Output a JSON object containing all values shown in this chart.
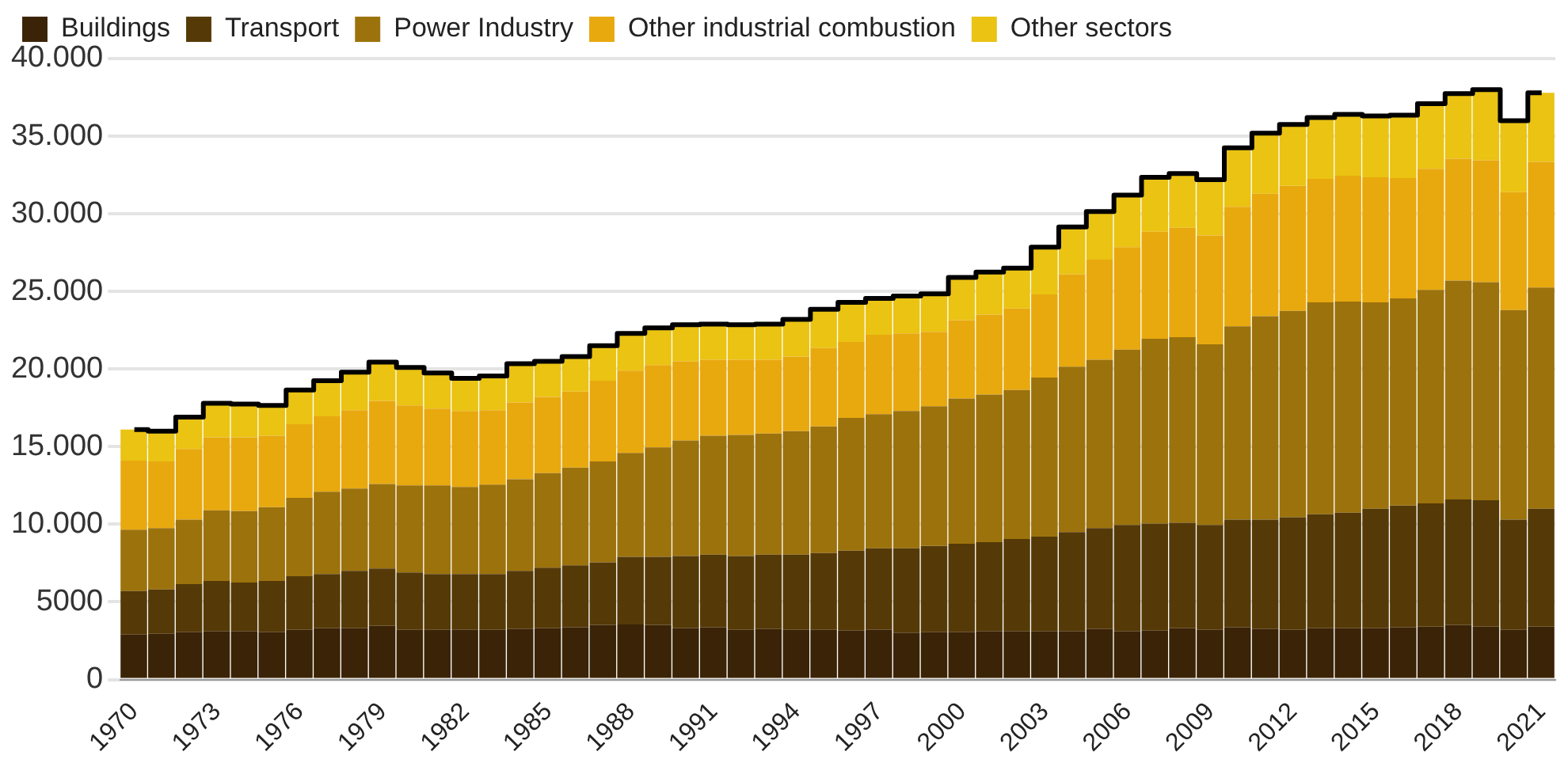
{
  "chart_data": {
    "type": "bar",
    "stacked": true,
    "legend": "top left",
    "grid": "y",
    "marker": "none",
    "categories": [
      "1970",
      null,
      null,
      "1973",
      null,
      null,
      "1976",
      null,
      null,
      "1979",
      null,
      null,
      "1982",
      null,
      null,
      "1985",
      null,
      null,
      "1988",
      null,
      null,
      "1991",
      null,
      null,
      "1994",
      null,
      null,
      "1997",
      null,
      null,
      "2000",
      null,
      null,
      "2003",
      null,
      null,
      "2006",
      null,
      null,
      "2009",
      null,
      null,
      "2012",
      null,
      null,
      "2015",
      null,
      null,
      "2018",
      null,
      null,
      "2021"
    ],
    "ylim": [
      0,
      40000
    ],
    "yticks": [
      0,
      5000,
      {
        "value": 10000,
        "label": "10.000"
      },
      {
        "value": 15000,
        "label": "15.000"
      },
      {
        "value": 20000,
        "label": "20.000"
      },
      {
        "value": 25000,
        "label": "25.000"
      },
      {
        "value": 30000,
        "label": "30.000"
      },
      {
        "value": 35000,
        "label": "35.000"
      },
      {
        "value": 40000,
        "label": "40.000"
      }
    ],
    "series": [
      {
        "name": "Buildings",
        "color": "#3a2306",
        "values": [
          2900,
          2950,
          3050,
          3100,
          3100,
          3050,
          3200,
          3300,
          3300,
          3450,
          3200,
          3200,
          3200,
          3200,
          3250,
          3300,
          3350,
          3500,
          3550,
          3500,
          3300,
          3350,
          3200,
          3250,
          3200,
          3200,
          3150,
          3200,
          3000,
          3050,
          3050,
          3100,
          3100,
          3100,
          3100,
          3250,
          3100,
          3150,
          3300,
          3200,
          3350,
          3250,
          3200,
          3300,
          3300,
          3300,
          3350,
          3400,
          3500,
          3400,
          3200,
          3400
        ]
      },
      {
        "name": "Transport",
        "color": "#553a08",
        "values": [
          2800,
          2850,
          3100,
          3250,
          3150,
          3300,
          3450,
          3500,
          3700,
          3700,
          3700,
          3600,
          3600,
          3600,
          3750,
          3900,
          4000,
          4050,
          4350,
          4400,
          4650,
          4700,
          4750,
          4800,
          4850,
          4950,
          5150,
          5250,
          5450,
          5550,
          5700,
          5750,
          5950,
          6100,
          6400,
          6500,
          6850,
          6900,
          6800,
          6750,
          6950,
          7050,
          7250,
          7350,
          7450,
          7700,
          7850,
          7950,
          8100,
          8150,
          7100,
          7600
        ]
      },
      {
        "name": "Power Industry",
        "color": "#9c720c",
        "values": [
          3950,
          3950,
          4150,
          4550,
          4600,
          4750,
          5050,
          5300,
          5300,
          5450,
          5600,
          5700,
          5600,
          5750,
          5900,
          6100,
          6300,
          6500,
          6700,
          7050,
          7450,
          7650,
          7800,
          7800,
          7950,
          8150,
          8550,
          8650,
          8850,
          9000,
          9350,
          9500,
          9600,
          10250,
          10650,
          10850,
          11300,
          11900,
          11950,
          11650,
          12450,
          13100,
          13300,
          13650,
          13600,
          13300,
          13350,
          13750,
          14100,
          14050,
          13500,
          14250
        ]
      },
      {
        "name": "Other industrial combustion",
        "color": "#e8a90f",
        "values": [
          4450,
          4300,
          4550,
          4700,
          4750,
          4600,
          4750,
          4850,
          5050,
          5350,
          5150,
          4950,
          4900,
          4800,
          4950,
          4900,
          4900,
          5200,
          5300,
          5300,
          5100,
          4900,
          4850,
          4750,
          4800,
          5050,
          4900,
          5100,
          5000,
          4800,
          5050,
          5150,
          5250,
          5350,
          5950,
          6450,
          6600,
          6900,
          7050,
          7000,
          7700,
          7900,
          8050,
          7950,
          8100,
          8050,
          7750,
          7800,
          7850,
          7850,
          7600,
          8100
        ]
      },
      {
        "name": "Other sectors",
        "color": "#eac313",
        "values": [
          2000,
          1950,
          2050,
          2200,
          2150,
          1950,
          2200,
          2300,
          2450,
          2500,
          2450,
          2300,
          2100,
          2200,
          2500,
          2300,
          2250,
          2250,
          2400,
          2400,
          2350,
          2300,
          2250,
          2300,
          2400,
          2500,
          2550,
          2350,
          2400,
          2450,
          2750,
          2750,
          2600,
          3050,
          3050,
          3100,
          3350,
          3500,
          3500,
          3600,
          3800,
          3900,
          3950,
          3950,
          3950,
          3950,
          4050,
          4200,
          4200,
          4550,
          4600,
          4450
        ]
      },
      {
        "type": "step",
        "color": "#000000",
        "values": [
          16100,
          16000,
          16900,
          17800,
          17750,
          17650,
          18650,
          19250,
          19800,
          20450,
          20100,
          19750,
          19400,
          19550,
          20350,
          20500,
          20800,
          21500,
          22300,
          22650,
          22850,
          22900,
          22850,
          22900,
          23200,
          23850,
          24300,
          24550,
          24700,
          24850,
          25900,
          26250,
          26500,
          27850,
          29150,
          30150,
          31200,
          32350,
          32600,
          32200,
          34250,
          35200,
          35750,
          36200,
          36400,
          36300,
          36350,
          37100,
          37750,
          38000,
          36000,
          37800
        ]
      }
    ]
  }
}
